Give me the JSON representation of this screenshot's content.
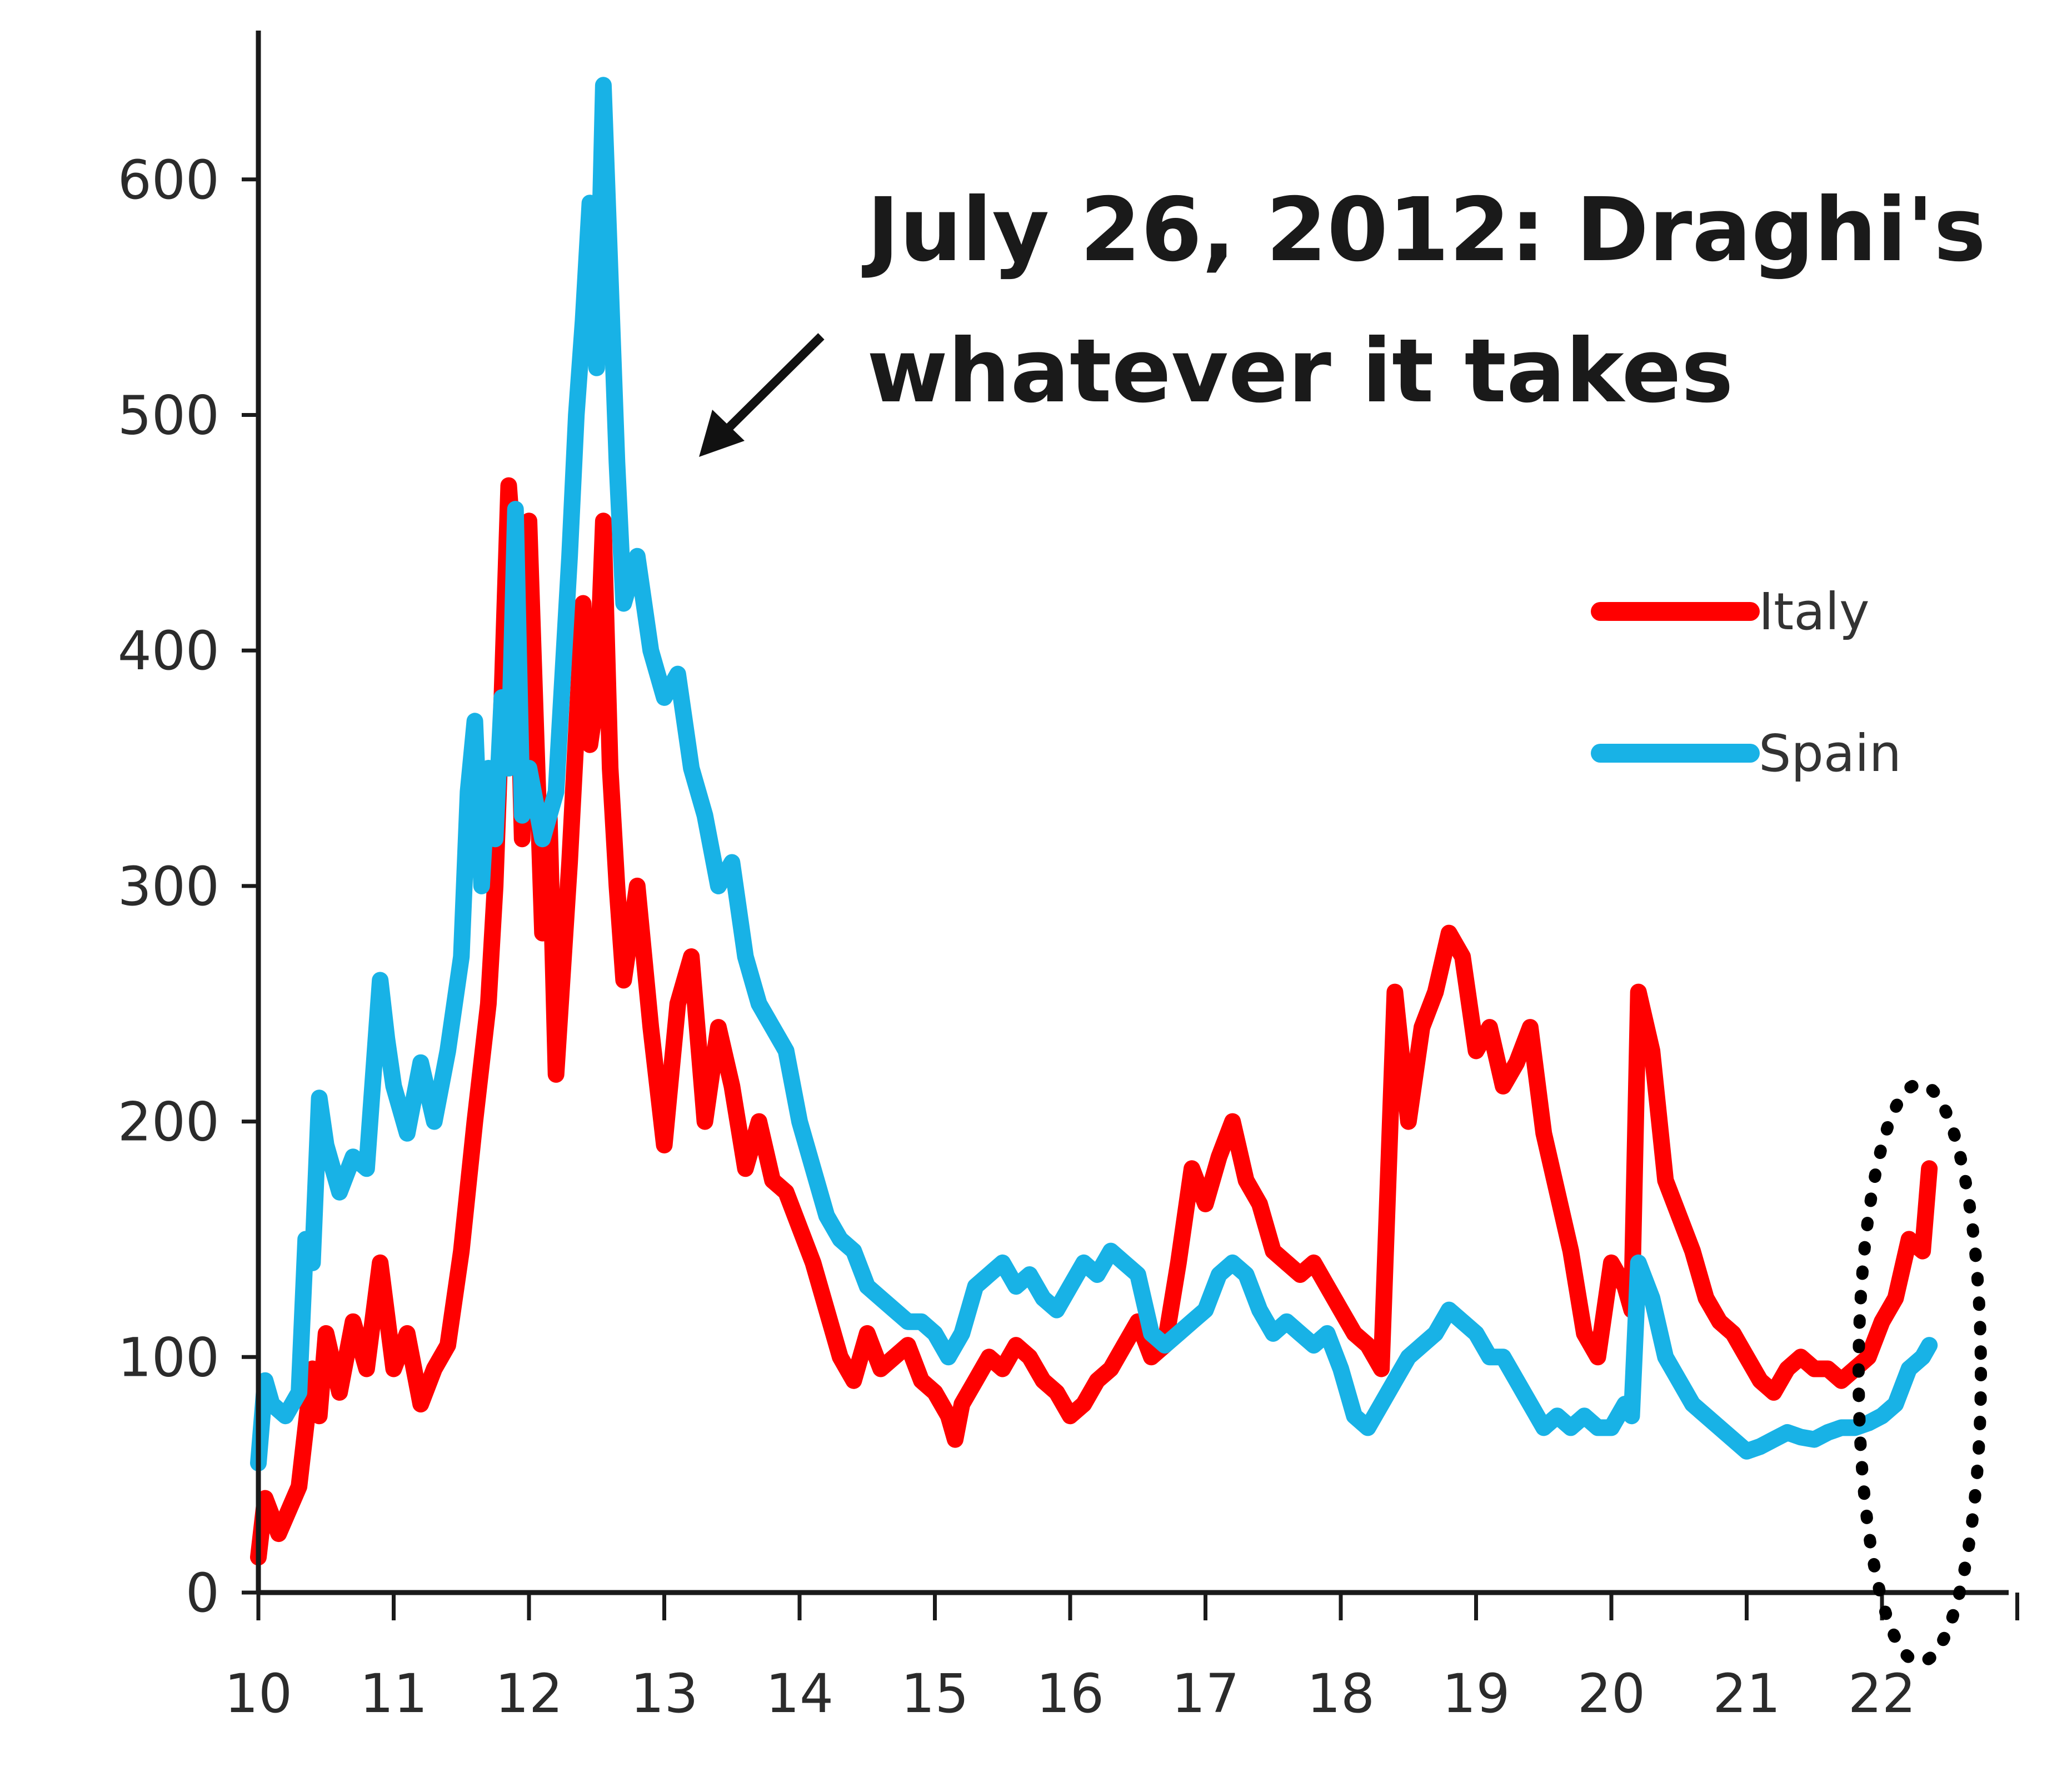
{
  "chart_data": {
    "type": "line",
    "title": "",
    "xlabel": "",
    "ylabel": "",
    "xlim": [
      10,
      23
    ],
    "ylim": [
      0,
      650
    ],
    "x_ticks": [
      "10",
      "11",
      "12",
      "13",
      "14",
      "15",
      "16",
      "17",
      "18",
      "19",
      "20",
      "21",
      "22"
    ],
    "y_ticks": [
      "0",
      "100",
      "200",
      "300",
      "400",
      "500",
      "600"
    ],
    "grid": false,
    "legend_position": "right",
    "annotation": {
      "lines": [
        "July 26, 2012: Draghi's",
        "whatever it takes"
      ]
    },
    "series": [
      {
        "name": "Italy",
        "color": "#ff0000",
        "points": [
          [
            10.0,
            15
          ],
          [
            10.05,
            40
          ],
          [
            10.15,
            25
          ],
          [
            10.3,
            45
          ],
          [
            10.4,
            95
          ],
          [
            10.45,
            75
          ],
          [
            10.5,
            110
          ],
          [
            10.6,
            85
          ],
          [
            10.7,
            115
          ],
          [
            10.8,
            95
          ],
          [
            10.9,
            140
          ],
          [
            11.0,
            95
          ],
          [
            11.1,
            110
          ],
          [
            11.2,
            80
          ],
          [
            11.3,
            95
          ],
          [
            11.4,
            105
          ],
          [
            11.5,
            145
          ],
          [
            11.6,
            200
          ],
          [
            11.7,
            250
          ],
          [
            11.75,
            300
          ],
          [
            11.8,
            380
          ],
          [
            11.85,
            470
          ],
          [
            11.9,
            430
          ],
          [
            11.95,
            320
          ],
          [
            12.0,
            455
          ],
          [
            12.1,
            280
          ],
          [
            12.15,
            330
          ],
          [
            12.2,
            220
          ],
          [
            12.3,
            310
          ],
          [
            12.4,
            420
          ],
          [
            12.45,
            360
          ],
          [
            12.5,
            380
          ],
          [
            12.55,
            455
          ],
          [
            12.6,
            350
          ],
          [
            12.65,
            300
          ],
          [
            12.7,
            260
          ],
          [
            12.8,
            300
          ],
          [
            12.9,
            240
          ],
          [
            13.0,
            190
          ],
          [
            13.1,
            250
          ],
          [
            13.2,
            270
          ],
          [
            13.3,
            200
          ],
          [
            13.4,
            240
          ],
          [
            13.5,
            215
          ],
          [
            13.6,
            180
          ],
          [
            13.7,
            200
          ],
          [
            13.8,
            175
          ],
          [
            13.9,
            170
          ],
          [
            14.0,
            155
          ],
          [
            14.1,
            140
          ],
          [
            14.2,
            120
          ],
          [
            14.3,
            100
          ],
          [
            14.4,
            90
          ],
          [
            14.5,
            110
          ],
          [
            14.6,
            95
          ],
          [
            14.7,
            100
          ],
          [
            14.8,
            105
          ],
          [
            14.9,
            90
          ],
          [
            15.0,
            85
          ],
          [
            15.1,
            75
          ],
          [
            15.15,
            65
          ],
          [
            15.2,
            80
          ],
          [
            15.3,
            90
          ],
          [
            15.4,
            100
          ],
          [
            15.5,
            95
          ],
          [
            15.6,
            105
          ],
          [
            15.7,
            100
          ],
          [
            15.8,
            90
          ],
          [
            15.9,
            85
          ],
          [
            16.0,
            75
          ],
          [
            16.1,
            80
          ],
          [
            16.2,
            90
          ],
          [
            16.3,
            95
          ],
          [
            16.4,
            105
          ],
          [
            16.5,
            115
          ],
          [
            16.6,
            100
          ],
          [
            16.7,
            105
          ],
          [
            16.8,
            140
          ],
          [
            16.9,
            180
          ],
          [
            17.0,
            165
          ],
          [
            17.1,
            185
          ],
          [
            17.2,
            200
          ],
          [
            17.3,
            175
          ],
          [
            17.4,
            165
          ],
          [
            17.5,
            145
          ],
          [
            17.6,
            140
          ],
          [
            17.7,
            135
          ],
          [
            17.8,
            140
          ],
          [
            17.9,
            130
          ],
          [
            18.0,
            120
          ],
          [
            18.1,
            110
          ],
          [
            18.2,
            105
          ],
          [
            18.3,
            95
          ],
          [
            18.4,
            255
          ],
          [
            18.5,
            200
          ],
          [
            18.6,
            240
          ],
          [
            18.7,
            255
          ],
          [
            18.8,
            280
          ],
          [
            18.9,
            270
          ],
          [
            19.0,
            230
          ],
          [
            19.1,
            240
          ],
          [
            19.2,
            215
          ],
          [
            19.3,
            225
          ],
          [
            19.4,
            240
          ],
          [
            19.5,
            195
          ],
          [
            19.6,
            170
          ],
          [
            19.7,
            145
          ],
          [
            19.8,
            110
          ],
          [
            19.9,
            100
          ],
          [
            20.0,
            140
          ],
          [
            20.1,
            130
          ],
          [
            20.15,
            120
          ],
          [
            20.2,
            255
          ],
          [
            20.3,
            230
          ],
          [
            20.4,
            175
          ],
          [
            20.5,
            160
          ],
          [
            20.6,
            145
          ],
          [
            20.7,
            125
          ],
          [
            20.8,
            115
          ],
          [
            20.9,
            110
          ],
          [
            21.0,
            100
          ],
          [
            21.1,
            90
          ],
          [
            21.2,
            85
          ],
          [
            21.3,
            95
          ],
          [
            21.4,
            100
          ],
          [
            21.5,
            95
          ],
          [
            21.6,
            95
          ],
          [
            21.7,
            90
          ],
          [
            21.8,
            95
          ],
          [
            21.9,
            100
          ],
          [
            22.0,
            115
          ],
          [
            22.1,
            125
          ],
          [
            22.2,
            150
          ],
          [
            22.3,
            145
          ],
          [
            22.35,
            180
          ]
        ]
      },
      {
        "name": "Spain",
        "color": "#18b2e6",
        "points": [
          [
            10.0,
            55
          ],
          [
            10.05,
            90
          ],
          [
            10.1,
            80
          ],
          [
            10.2,
            75
          ],
          [
            10.3,
            85
          ],
          [
            10.35,
            150
          ],
          [
            10.4,
            140
          ],
          [
            10.45,
            210
          ],
          [
            10.5,
            190
          ],
          [
            10.6,
            170
          ],
          [
            10.7,
            185
          ],
          [
            10.8,
            180
          ],
          [
            10.9,
            260
          ],
          [
            10.95,
            235
          ],
          [
            11.0,
            215
          ],
          [
            11.1,
            195
          ],
          [
            11.2,
            225
          ],
          [
            11.3,
            200
          ],
          [
            11.4,
            230
          ],
          [
            11.5,
            270
          ],
          [
            11.55,
            340
          ],
          [
            11.6,
            370
          ],
          [
            11.65,
            300
          ],
          [
            11.7,
            350
          ],
          [
            11.75,
            320
          ],
          [
            11.8,
            380
          ],
          [
            11.85,
            350
          ],
          [
            11.9,
            460
          ],
          [
            11.95,
            330
          ],
          [
            12.0,
            350
          ],
          [
            12.1,
            320
          ],
          [
            12.2,
            340
          ],
          [
            12.3,
            440
          ],
          [
            12.35,
            500
          ],
          [
            12.4,
            540
          ],
          [
            12.45,
            590
          ],
          [
            12.5,
            520
          ],
          [
            12.55,
            640
          ],
          [
            12.6,
            560
          ],
          [
            12.65,
            480
          ],
          [
            12.7,
            420
          ],
          [
            12.8,
            440
          ],
          [
            12.9,
            400
          ],
          [
            13.0,
            380
          ],
          [
            13.1,
            390
          ],
          [
            13.2,
            350
          ],
          [
            13.3,
            330
          ],
          [
            13.4,
            300
          ],
          [
            13.5,
            310
          ],
          [
            13.6,
            270
          ],
          [
            13.7,
            250
          ],
          [
            13.8,
            240
          ],
          [
            13.9,
            230
          ],
          [
            14.0,
            200
          ],
          [
            14.1,
            180
          ],
          [
            14.2,
            160
          ],
          [
            14.3,
            150
          ],
          [
            14.4,
            145
          ],
          [
            14.5,
            130
          ],
          [
            14.6,
            125
          ],
          [
            14.7,
            120
          ],
          [
            14.8,
            115
          ],
          [
            14.9,
            115
          ],
          [
            15.0,
            110
          ],
          [
            15.1,
            100
          ],
          [
            15.2,
            110
          ],
          [
            15.3,
            130
          ],
          [
            15.4,
            135
          ],
          [
            15.5,
            140
          ],
          [
            15.6,
            130
          ],
          [
            15.7,
            135
          ],
          [
            15.8,
            125
          ],
          [
            15.9,
            120
          ],
          [
            16.0,
            130
          ],
          [
            16.1,
            140
          ],
          [
            16.2,
            135
          ],
          [
            16.3,
            145
          ],
          [
            16.4,
            140
          ],
          [
            16.5,
            135
          ],
          [
            16.6,
            110
          ],
          [
            16.7,
            105
          ],
          [
            16.8,
            110
          ],
          [
            16.9,
            115
          ],
          [
            17.0,
            120
          ],
          [
            17.1,
            135
          ],
          [
            17.2,
            140
          ],
          [
            17.3,
            135
          ],
          [
            17.4,
            120
          ],
          [
            17.5,
            110
          ],
          [
            17.6,
            115
          ],
          [
            17.7,
            110
          ],
          [
            17.8,
            105
          ],
          [
            17.9,
            110
          ],
          [
            18.0,
            95
          ],
          [
            18.1,
            75
          ],
          [
            18.2,
            70
          ],
          [
            18.3,
            80
          ],
          [
            18.4,
            90
          ],
          [
            18.5,
            100
          ],
          [
            18.6,
            105
          ],
          [
            18.7,
            110
          ],
          [
            18.8,
            120
          ],
          [
            18.9,
            115
          ],
          [
            19.0,
            110
          ],
          [
            19.1,
            100
          ],
          [
            19.2,
            100
          ],
          [
            19.3,
            90
          ],
          [
            19.4,
            80
          ],
          [
            19.5,
            70
          ],
          [
            19.6,
            75
          ],
          [
            19.7,
            70
          ],
          [
            19.8,
            75
          ],
          [
            19.9,
            70
          ],
          [
            20.0,
            70
          ],
          [
            20.1,
            80
          ],
          [
            20.15,
            75
          ],
          [
            20.2,
            140
          ],
          [
            20.3,
            125
          ],
          [
            20.4,
            100
          ],
          [
            20.5,
            90
          ],
          [
            20.6,
            80
          ],
          [
            20.7,
            75
          ],
          [
            20.8,
            70
          ],
          [
            20.9,
            65
          ],
          [
            21.0,
            60
          ],
          [
            21.1,
            62
          ],
          [
            21.2,
            65
          ],
          [
            21.3,
            68
          ],
          [
            21.4,
            66
          ],
          [
            21.5,
            65
          ],
          [
            21.6,
            68
          ],
          [
            21.7,
            70
          ],
          [
            21.8,
            70
          ],
          [
            21.9,
            72
          ],
          [
            22.0,
            75
          ],
          [
            22.1,
            80
          ],
          [
            22.2,
            95
          ],
          [
            22.3,
            100
          ],
          [
            22.35,
            105
          ]
        ]
      }
    ]
  }
}
